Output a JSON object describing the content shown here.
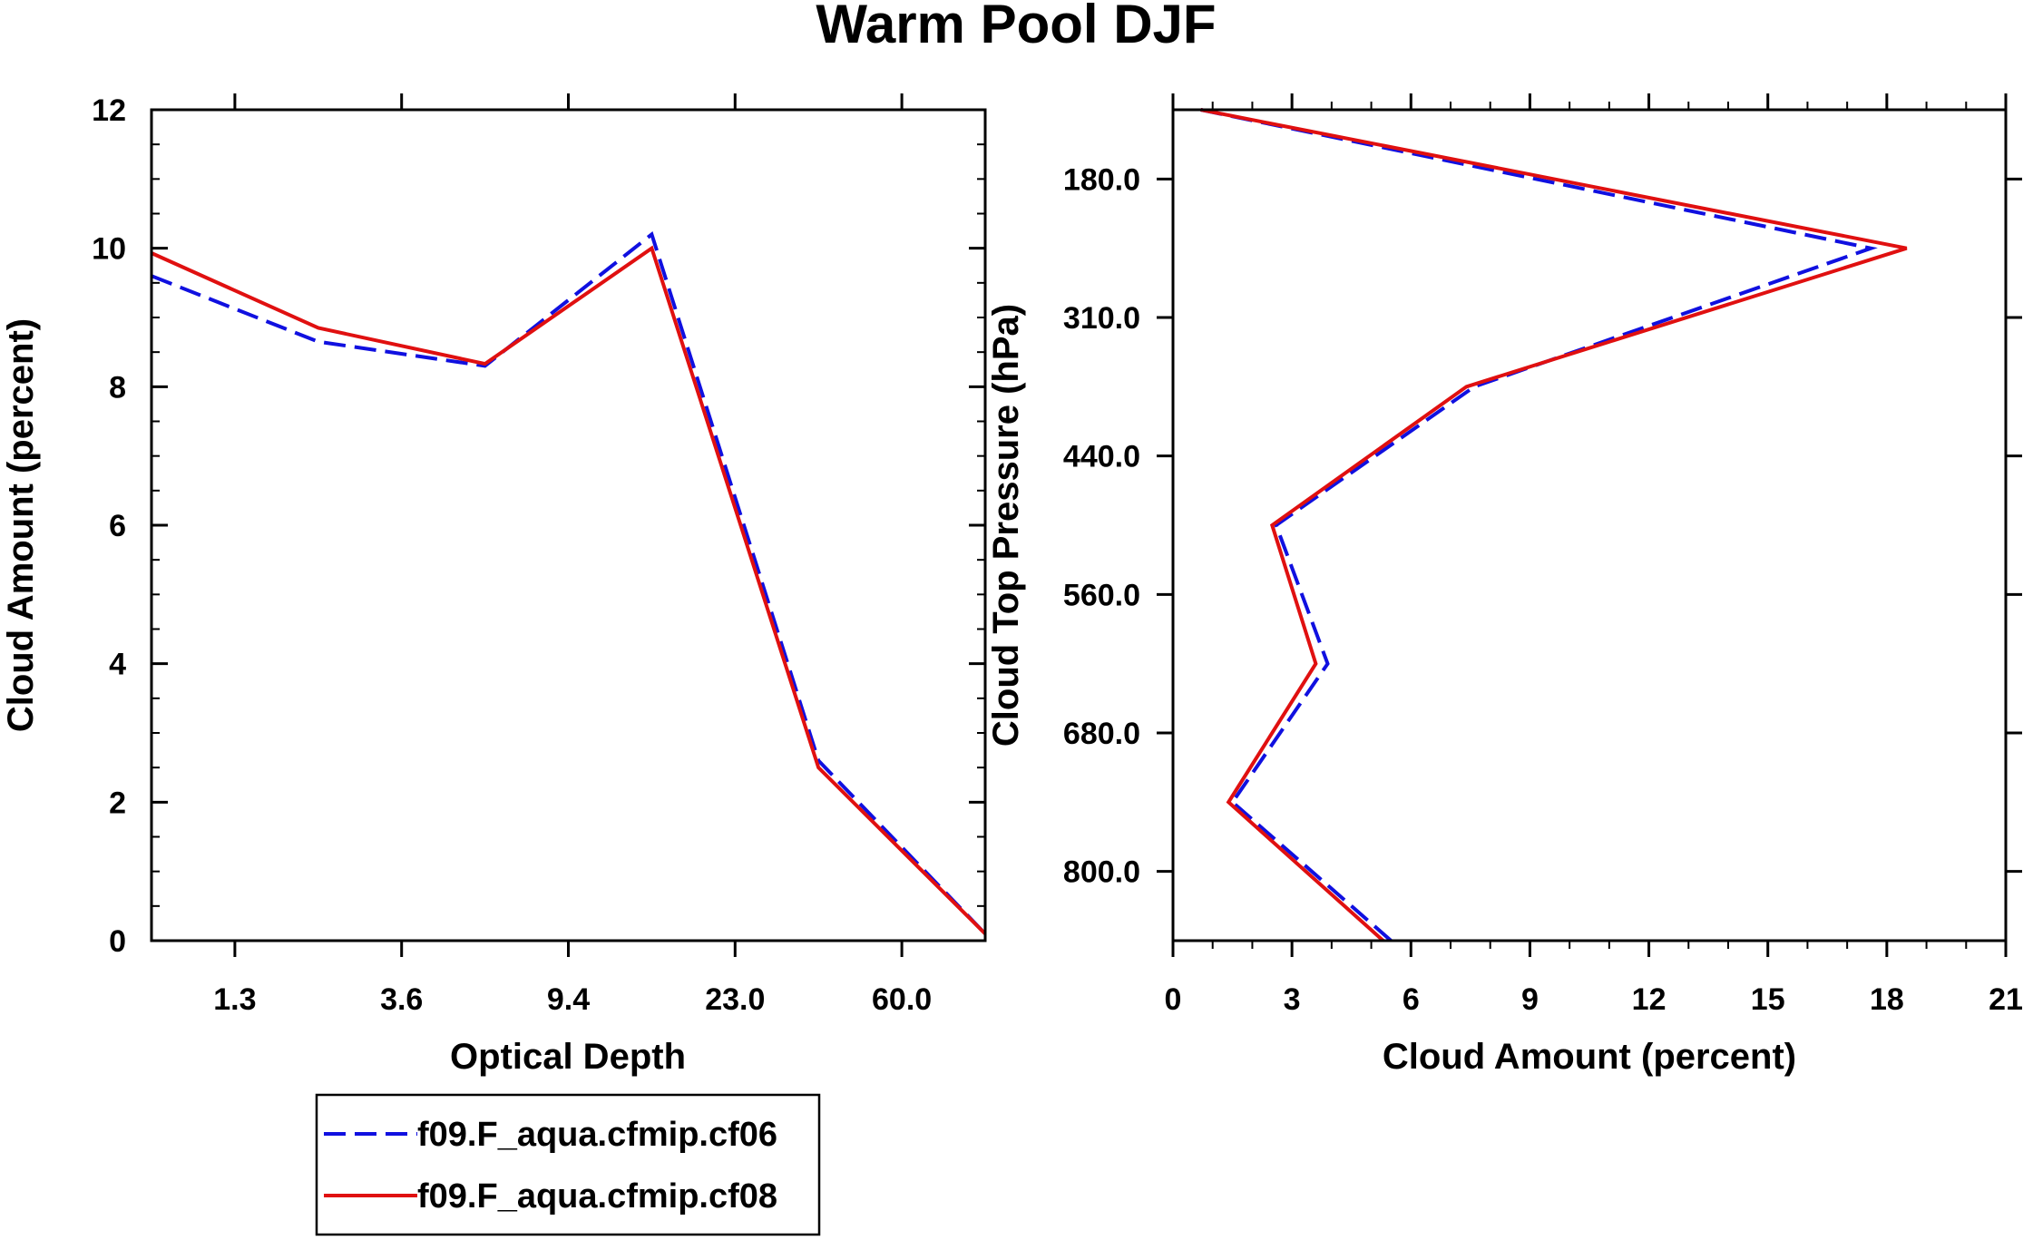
{
  "figure": {
    "title": "Warm Pool DJF"
  },
  "chart_data": [
    {
      "type": "line",
      "xlabel": "Optical Depth",
      "ylabel": "Cloud Amount (percent)",
      "x_tick_labels": [
        "1.3",
        "3.6",
        "9.4",
        "23.0",
        "60.0"
      ],
      "y_ticks": [
        0,
        2,
        4,
        6,
        8,
        10,
        12
      ],
      "ylim": [
        0,
        12
      ],
      "x_index_range": [
        0,
        10
      ],
      "x_index_of_points": [
        0,
        2,
        4,
        6,
        8,
        10
      ],
      "series": [
        {
          "name": "f09.F_aqua.cfmip.cf06",
          "color": "#1010e0",
          "style": "dashed",
          "values": [
            9.6,
            8.65,
            8.3,
            10.2,
            2.6,
            0.1
          ]
        },
        {
          "name": "f09.F_aqua.cfmip.cf08",
          "color": "#e01010",
          "style": "solid",
          "values": [
            9.93,
            8.85,
            8.33,
            10.0,
            2.5,
            0.1
          ]
        }
      ]
    },
    {
      "type": "line",
      "orientation": "vertical-profile",
      "xlabel": "Cloud Amount (percent)",
      "ylabel": "Cloud Top Pressure (hPa)",
      "x_ticks": [
        0,
        3,
        6,
        9,
        12,
        15,
        18,
        21
      ],
      "xlim": [
        0,
        21
      ],
      "y_tick_labels": [
        "180.0",
        "310.0",
        "440.0",
        "560.0",
        "680.0",
        "800.0"
      ],
      "y_index_range": [
        0,
        12
      ],
      "y_index_of_points": [
        0,
        2,
        4,
        6,
        8,
        10,
        12
      ],
      "series": [
        {
          "name": "f09.F_aqua.cfmip.cf06",
          "color": "#1010e0",
          "style": "dashed",
          "values": [
            0.7,
            17.6,
            7.6,
            2.6,
            3.9,
            1.5,
            5.5
          ]
        },
        {
          "name": "f09.F_aqua.cfmip.cf08",
          "color": "#e01010",
          "style": "solid",
          "values": [
            0.7,
            18.5,
            7.4,
            2.5,
            3.6,
            1.4,
            5.3
          ]
        }
      ]
    }
  ],
  "legend": {
    "position": "bottom-left",
    "entries": [
      "f09.F_aqua.cfmip.cf06",
      "f09.F_aqua.cfmip.cf08"
    ]
  }
}
